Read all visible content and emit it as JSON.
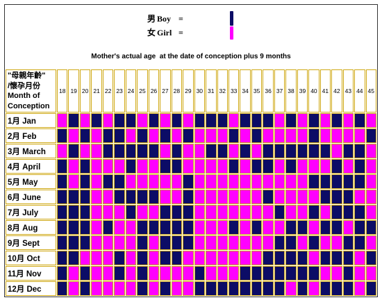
{
  "chart_data": {
    "type": "table",
    "legend": [
      {
        "hanzi": "男",
        "name": "Boy",
        "equals": "=",
        "color": "#0c0c66"
      },
      {
        "hanzi": "女",
        "name": "Girl",
        "equals": "=",
        "color": "#ff00ff"
      }
    ],
    "xlabel": "Mother's actual age  at the date of conception plus 9 months",
    "row_header": [
      "\"母親年齡\"",
      "/懷孕月份",
      "Month of",
      "Conception"
    ],
    "grid_color": "#cfa812",
    "columns": [
      18,
      19,
      20,
      21,
      22,
      23,
      24,
      25,
      26,
      27,
      28,
      29,
      30,
      31,
      32,
      33,
      34,
      35,
      36,
      37,
      38,
      39,
      40,
      41,
      42,
      43,
      44,
      45
    ],
    "rows": [
      {
        "label": "1月 Jan",
        "values": [
          "Girl",
          "Boy",
          "Girl",
          "Boy",
          "Girl",
          "Boy",
          "Boy",
          "Girl",
          "Boy",
          "Girl",
          "Boy",
          "Girl",
          "Boy",
          "Boy",
          "Boy",
          "Girl",
          "Boy",
          "Boy",
          "Boy",
          "Girl",
          "Boy",
          "Girl",
          "Boy",
          "Girl",
          "Boy",
          "Girl",
          "Boy",
          "Girl"
        ]
      },
      {
        "label": "2月 Feb",
        "values": [
          "Boy",
          "Girl",
          "Boy",
          "Girl",
          "Boy",
          "Boy",
          "Girl",
          "Boy",
          "Girl",
          "Boy",
          "Girl",
          "Boy",
          "Girl",
          "Girl",
          "Girl",
          "Boy",
          "Girl",
          "Boy",
          "Girl",
          "Girl",
          "Girl",
          "Girl",
          "Boy",
          "Girl",
          "Girl",
          "Girl",
          "Girl",
          "Boy"
        ]
      },
      {
        "label": "3月 March",
        "values": [
          "Girl",
          "Boy",
          "Girl",
          "Girl",
          "Boy",
          "Boy",
          "Boy",
          "Boy",
          "Boy",
          "Girl",
          "Boy",
          "Girl",
          "Girl",
          "Boy",
          "Boy",
          "Girl",
          "Boy",
          "Girl",
          "Boy",
          "Boy",
          "Boy",
          "Boy",
          "Boy",
          "Boy",
          "Girl",
          "Boy",
          "Boy",
          "Girl"
        ]
      },
      {
        "label": "4月 April",
        "values": [
          "Boy",
          "Girl",
          "Boy",
          "Girl",
          "Girl",
          "Girl",
          "Boy",
          "Girl",
          "Girl",
          "Boy",
          "Boy",
          "Girl",
          "Girl",
          "Girl",
          "Girl",
          "Boy",
          "Girl",
          "Boy",
          "Boy",
          "Girl",
          "Boy",
          "Girl",
          "Girl",
          "Girl",
          "Boy",
          "Girl",
          "Boy",
          "Girl"
        ]
      },
      {
        "label": "5月 May",
        "values": [
          "Boy",
          "Girl",
          "Boy",
          "Girl",
          "Boy",
          "Boy",
          "Girl",
          "Girl",
          "Girl",
          "Girl",
          "Girl",
          "Boy",
          "Girl",
          "Girl",
          "Girl",
          "Girl",
          "Girl",
          "Girl",
          "Girl",
          "Girl",
          "Girl",
          "Girl",
          "Boy",
          "Boy",
          "Boy",
          "Boy",
          "Boy",
          "Girl"
        ]
      },
      {
        "label": "6月 June",
        "values": [
          "Boy",
          "Boy",
          "Boy",
          "Girl",
          "Girl",
          "Boy",
          "Boy",
          "Boy",
          "Boy",
          "Girl",
          "Girl",
          "Boy",
          "Girl",
          "Girl",
          "Girl",
          "Girl",
          "Girl",
          "Girl",
          "Boy",
          "Girl",
          "Girl",
          "Girl",
          "Girl",
          "Boy",
          "Boy",
          "Boy",
          "Girl",
          "Girl"
        ]
      },
      {
        "label": "7月 July",
        "values": [
          "Boy",
          "Boy",
          "Boy",
          "Girl",
          "Girl",
          "Girl",
          "Boy",
          "Girl",
          "Girl",
          "Boy",
          "Boy",
          "Boy",
          "Girl",
          "Girl",
          "Girl",
          "Girl",
          "Girl",
          "Girl",
          "Girl",
          "Boy",
          "Girl",
          "Girl",
          "Boy",
          "Girl",
          "Boy",
          "Boy",
          "Boy",
          "Girl"
        ]
      },
      {
        "label": "8月 Aug",
        "values": [
          "Boy",
          "Boy",
          "Boy",
          "Girl",
          "Boy",
          "Girl",
          "Girl",
          "Boy",
          "Boy",
          "Boy",
          "Boy",
          "Boy",
          "Girl",
          "Girl",
          "Girl",
          "Boy",
          "Girl",
          "Boy",
          "Girl",
          "Girl",
          "Boy",
          "Boy",
          "Girl",
          "Boy",
          "Boy",
          "Girl",
          "Boy",
          "Boy"
        ]
      },
      {
        "label": "9月 Sept",
        "values": [
          "Boy",
          "Boy",
          "Boy",
          "Girl",
          "Girl",
          "Girl",
          "Girl",
          "Boy",
          "Girl",
          "Boy",
          "Boy",
          "Boy",
          "Girl",
          "Girl",
          "Girl",
          "Girl",
          "Girl",
          "Girl",
          "Girl",
          "Boy",
          "Boy",
          "Girl",
          "Boy",
          "Girl",
          "Girl",
          "Boy",
          "Boy",
          "Girl"
        ]
      },
      {
        "label": "10月 Oct",
        "values": [
          "Boy",
          "Boy",
          "Girl",
          "Girl",
          "Girl",
          "Boy",
          "Girl",
          "Boy",
          "Girl",
          "Boy",
          "Boy",
          "Girl",
          "Girl",
          "Girl",
          "Girl",
          "Girl",
          "Girl",
          "Girl",
          "Boy",
          "Boy",
          "Boy",
          "Boy",
          "Girl",
          "Boy",
          "Boy",
          "Boy",
          "Girl",
          "Boy"
        ]
      },
      {
        "label": "11月 Nov",
        "values": [
          "Boy",
          "Girl",
          "Boy",
          "Girl",
          "Girl",
          "Boy",
          "Girl",
          "Boy",
          "Girl",
          "Girl",
          "Girl",
          "Girl",
          "Boy",
          "Girl",
          "Girl",
          "Girl",
          "Boy",
          "Boy",
          "Boy",
          "Boy",
          "Boy",
          "Boy",
          "Boy",
          "Girl",
          "Girl",
          "Boy",
          "Girl",
          "Girl"
        ]
      },
      {
        "label": "12月 Dec",
        "values": [
          "Boy",
          "Girl",
          "Boy",
          "Girl",
          "Girl",
          "Girl",
          "Girl",
          "Boy",
          "Girl",
          "Boy",
          "Girl",
          "Girl",
          "Boy",
          "Boy",
          "Boy",
          "Boy",
          "Boy",
          "Boy",
          "Boy",
          "Boy",
          "Girl",
          "Boy",
          "Girl",
          "Boy",
          "Boy",
          "Boy",
          "Girl",
          "Boy"
        ]
      }
    ]
  }
}
